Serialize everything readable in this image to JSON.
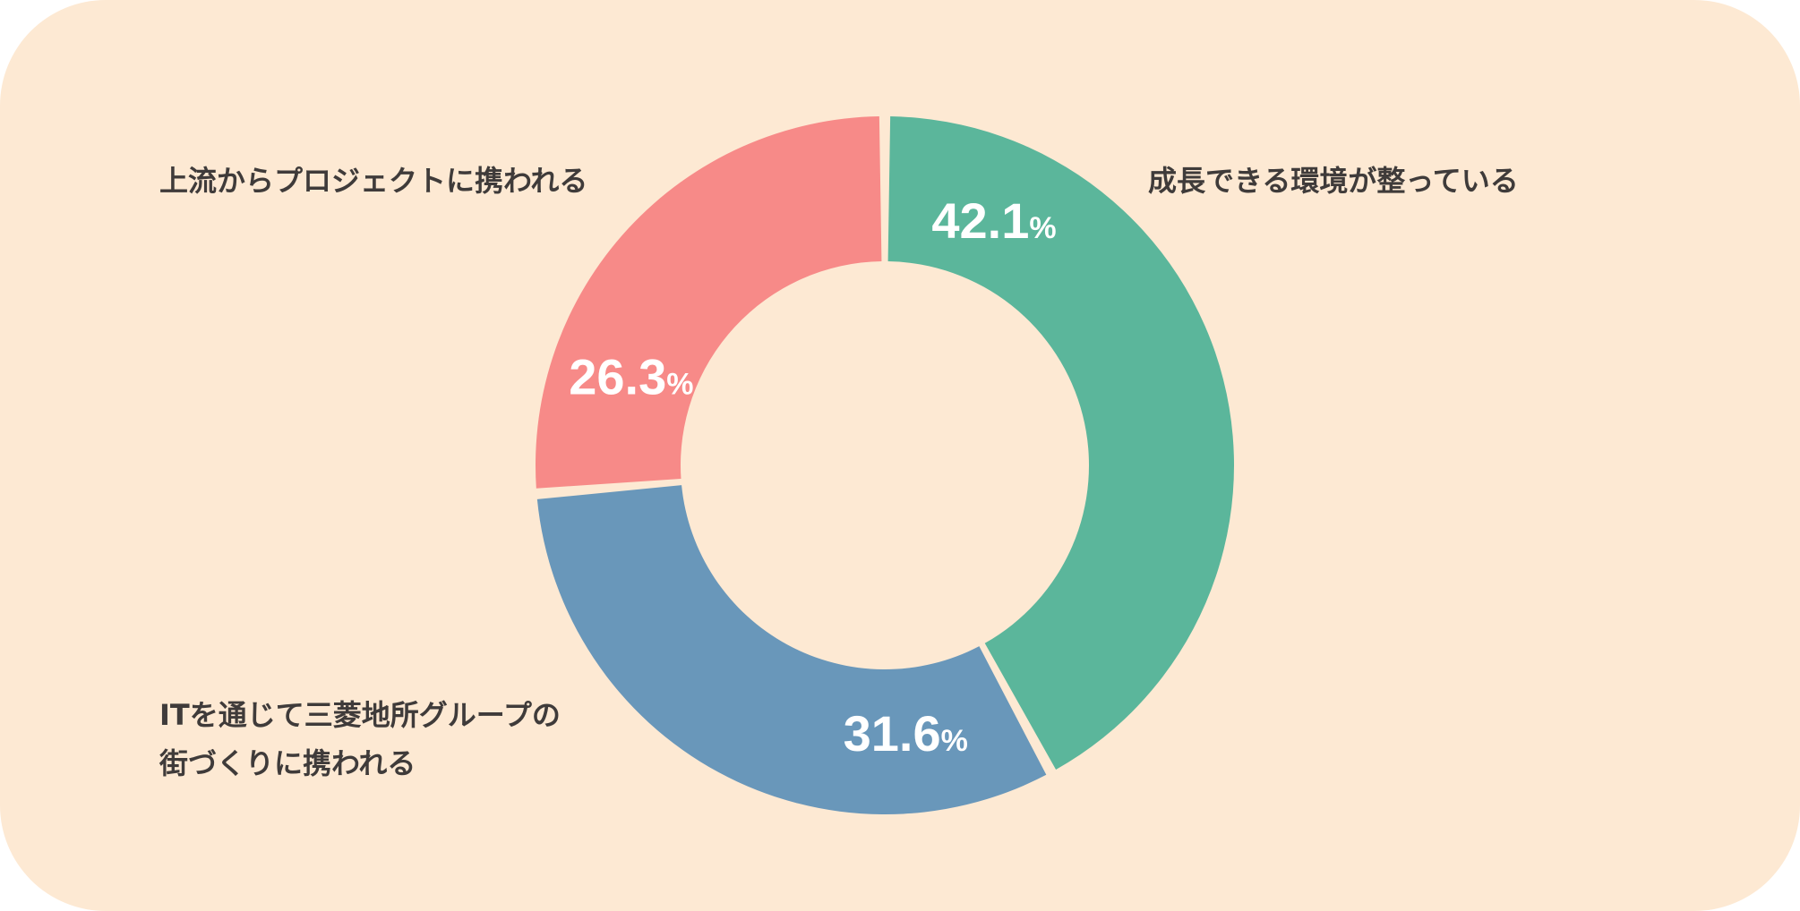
{
  "colors": {
    "background": "#fde9d3",
    "text": "#3f3b3a",
    "green": "#5bb69b",
    "blue": "#6997ba",
    "pink": "#f78a88"
  },
  "chart_data": {
    "type": "pie",
    "variant": "donut",
    "unit": "%",
    "slices": [
      {
        "label": "成長できる環境が整っている",
        "value": 42.1,
        "value_text": "42.1",
        "color": "#5bb69b"
      },
      {
        "label": "ITを通じて三菱地所グループの街づくりに携われる",
        "label_lines": [
          "ITを通じて三菱地所グループの",
          "街づくりに携われる"
        ],
        "value": 31.6,
        "value_text": "31.6",
        "color": "#6997ba"
      },
      {
        "label": "上流からプロジェクトに携われる",
        "value": 26.3,
        "value_text": "26.3",
        "color": "#f78a88"
      }
    ]
  }
}
